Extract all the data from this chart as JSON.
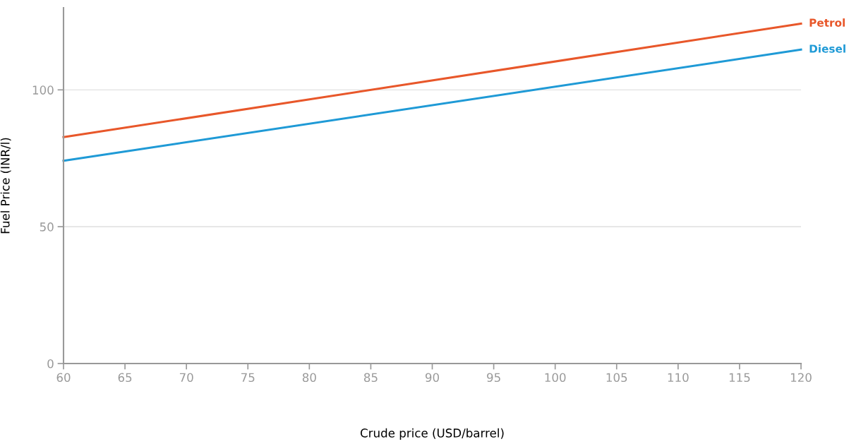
{
  "chart_data": {
    "type": "line",
    "xlabel": "Crude price (USD/barrel)",
    "ylabel": "Fuel Price (INR/l)",
    "x": [
      60,
      120
    ],
    "series": [
      {
        "name": "Petrol",
        "color": "#e8572a",
        "values": [
          82.7,
          124.2
        ]
      },
      {
        "name": "Diesel",
        "color": "#1f9ad6",
        "values": [
          74.1,
          114.7
        ]
      }
    ],
    "xlim": [
      60,
      120
    ],
    "ylim": [
      0,
      130
    ],
    "xticks": [
      60,
      65,
      70,
      75,
      80,
      85,
      90,
      95,
      100,
      105,
      110,
      115,
      120
    ],
    "yticks": [
      0,
      50,
      100
    ],
    "grid": "y",
    "legend": false,
    "marker": "none",
    "line_style": "solid"
  }
}
